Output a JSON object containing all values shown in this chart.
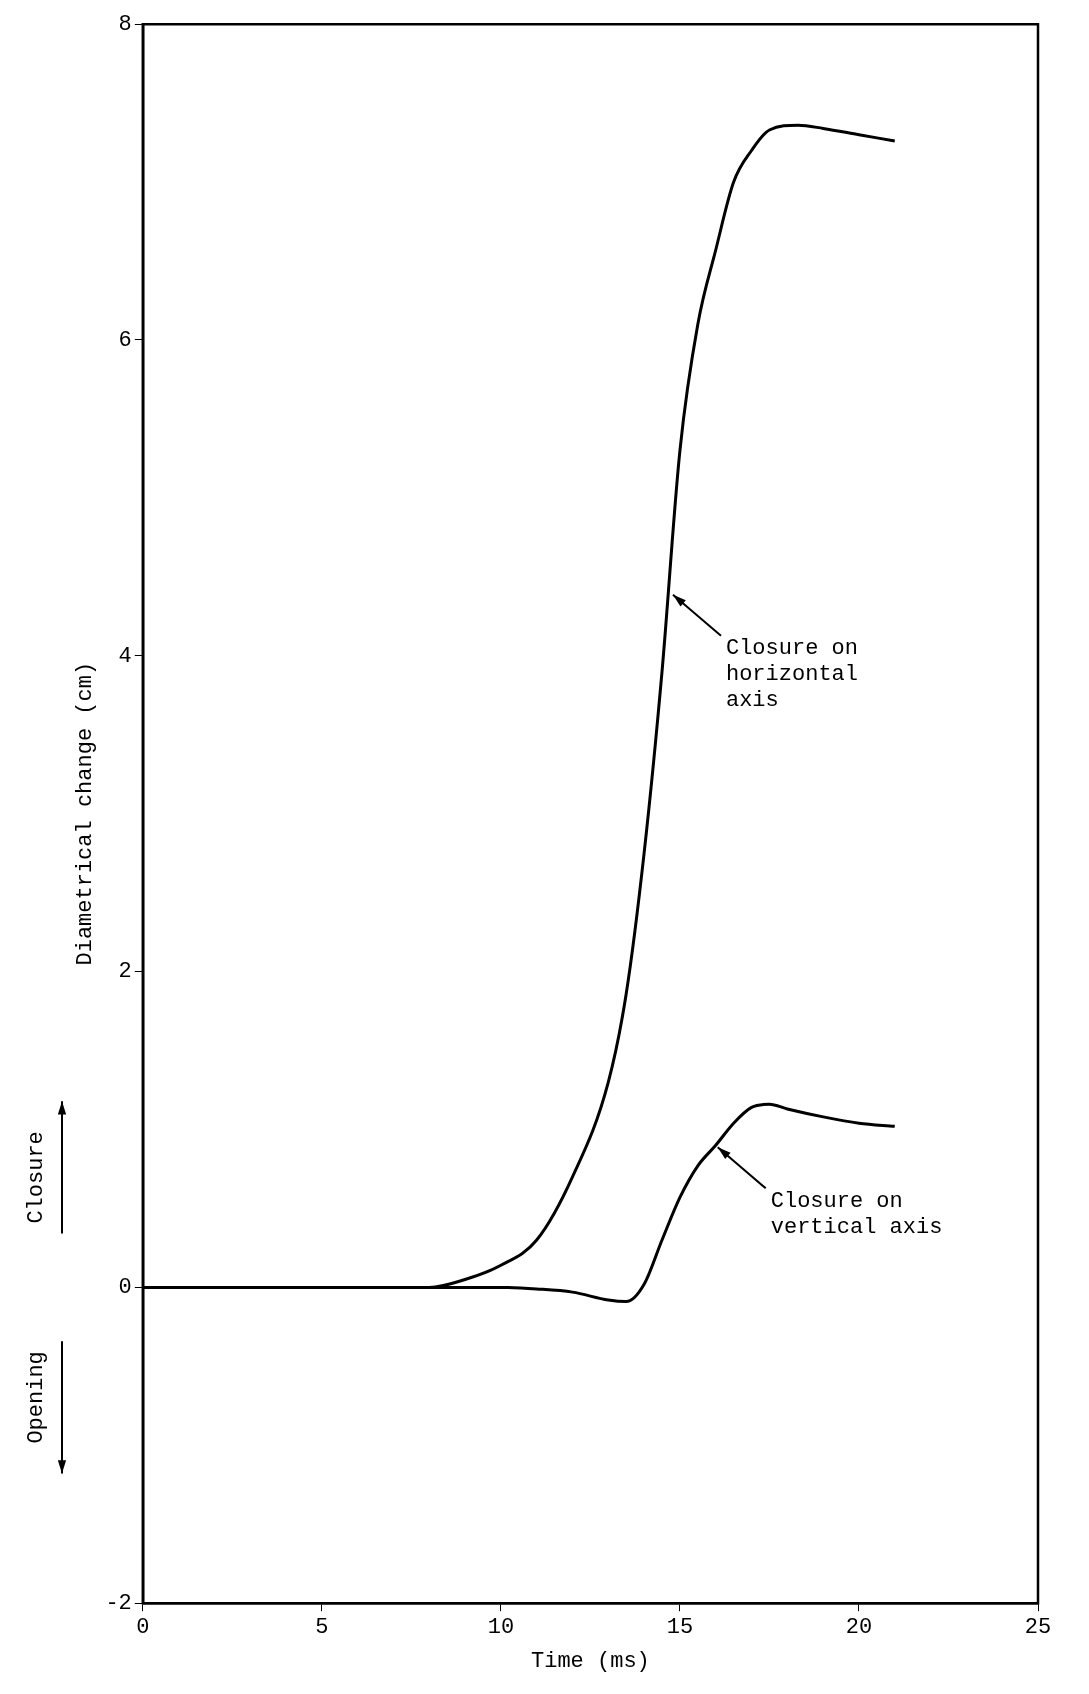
{
  "chart_data": {
    "type": "line",
    "xlabel": "Time (ms)",
    "ylabel": "Diametrical change (cm)",
    "xlim": [
      0,
      25
    ],
    "xticks": [
      0,
      5,
      10,
      15,
      20,
      25
    ],
    "ylim": [
      -2,
      8
    ],
    "yticks": [
      -2,
      0,
      2,
      4,
      6,
      8
    ],
    "grid": false,
    "legend": false,
    "marker": "none",
    "line_style": "solid",
    "series": [
      {
        "color": "#000000",
        "x": [
          0,
          4,
          8,
          9,
          10,
          11,
          12,
          13,
          13.5,
          14,
          14.5,
          15,
          15.5,
          16,
          16.5,
          17,
          17.5,
          18.3,
          19,
          20,
          21
        ],
        "values": [
          0,
          0,
          0,
          0.05,
          0.14,
          0.3,
          0.7,
          1.3,
          1.86,
          2.75,
          3.9,
          5.3,
          6.1,
          6.57,
          7.0,
          7.2,
          7.33,
          7.36,
          7.34,
          7.3,
          7.26
        ]
      },
      {
        "color": "#000000",
        "x": [
          0,
          5,
          10,
          11,
          12,
          13,
          13.5,
          14,
          14.5,
          15,
          15.5,
          16,
          16.5,
          17,
          17.5,
          18,
          19,
          20,
          21
        ],
        "values": [
          0,
          0,
          0,
          -0.01,
          -0.03,
          -0.08,
          -0.09,
          0.02,
          0.3,
          0.57,
          0.77,
          0.9,
          1.04,
          1.14,
          1.16,
          1.13,
          1.08,
          1.04,
          1.02
        ]
      }
    ],
    "annotations": [
      {
        "text": "Closure on horizontal axis",
        "x": 14.75,
        "y": 4.4
      },
      {
        "text": "Closure on vertical axis",
        "x": 16,
        "y": 0.9
      },
      "Closure",
      "Opening"
    ]
  }
}
